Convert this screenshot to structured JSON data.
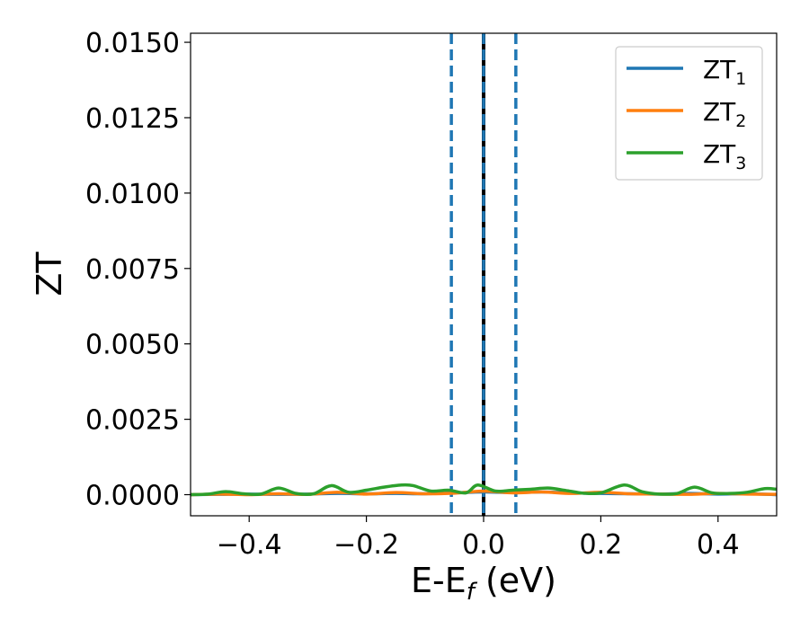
{
  "chart_data": {
    "type": "line",
    "title": "",
    "xlabel": {
      "main": "E-E",
      "sub": "f",
      "unit": " (eV)"
    },
    "ylabel": "ZT",
    "xlim": [
      -0.5,
      0.5
    ],
    "ylim": [
      -0.0007,
      0.0153
    ],
    "xticks": [
      -0.4,
      -0.2,
      0.0,
      0.2,
      0.4
    ],
    "xtick_labels": [
      "−0.4",
      "−0.2",
      "0.0",
      "0.2",
      "0.4"
    ],
    "yticks": [
      0.0,
      0.0025,
      0.005,
      0.0075,
      0.01,
      0.0125,
      0.015
    ],
    "ytick_labels": [
      "0.0000",
      "0.0025",
      "0.0050",
      "0.0075",
      "0.0100",
      "0.0125",
      "0.0150"
    ],
    "grid": false,
    "legend_position": "top-right",
    "vlines": [
      {
        "x": -0.055,
        "style": "dashed",
        "color": "#1f77b4"
      },
      {
        "x": 0.055,
        "style": "dashed",
        "color": "#1f77b4"
      },
      {
        "x": 0.0,
        "style": "solid",
        "color": "#000000"
      },
      {
        "x": 0.0,
        "style": "dashed",
        "color": "#1f77b4"
      }
    ],
    "series": [
      {
        "name": "ZT",
        "sub": "1",
        "color": "#1f77b4",
        "x": [
          -0.5,
          -0.45,
          -0.4,
          -0.35,
          -0.3,
          -0.25,
          -0.2,
          -0.15,
          -0.1,
          -0.05,
          0.0,
          0.05,
          0.1,
          0.15,
          0.2,
          0.25,
          0.3,
          0.35,
          0.4,
          0.45,
          0.5
        ],
        "y": [
          0.0,
          1e-05,
          2e-05,
          1e-05,
          2e-05,
          4e-05,
          3e-05,
          4e-05,
          3e-05,
          6e-05,
          9e-05,
          7e-05,
          9e-05,
          6e-05,
          4e-05,
          3e-05,
          2e-05,
          4e-05,
          2e-05,
          3e-05,
          0.0
        ]
      },
      {
        "name": "ZT",
        "sub": "2",
        "color": "#ff7f0e",
        "x": [
          -0.5,
          -0.45,
          -0.4,
          -0.35,
          -0.3,
          -0.25,
          -0.2,
          -0.15,
          -0.1,
          -0.05,
          0.0,
          0.05,
          0.1,
          0.15,
          0.2,
          0.25,
          0.3,
          0.35,
          0.4,
          0.45,
          0.5
        ],
        "y": [
          0.0,
          2e-05,
          0.0,
          3e-05,
          1e-05,
          8e-05,
          2e-05,
          7e-05,
          3e-05,
          5e-05,
          0.00012,
          6e-05,
          9e-05,
          4e-05,
          8e-05,
          3e-05,
          2e-05,
          1e-05,
          4e-05,
          2e-05,
          1e-05
        ]
      },
      {
        "name": "ZT",
        "sub": "3",
        "color": "#2ca02c",
        "x": [
          -0.5,
          -0.47,
          -0.44,
          -0.41,
          -0.38,
          -0.35,
          -0.32,
          -0.29,
          -0.26,
          -0.23,
          -0.2,
          -0.17,
          -0.14,
          -0.12,
          -0.09,
          -0.06,
          -0.03,
          -0.01,
          0.02,
          0.05,
          0.08,
          0.11,
          0.14,
          0.17,
          0.2,
          0.24,
          0.27,
          0.3,
          0.33,
          0.36,
          0.39,
          0.42,
          0.45,
          0.48,
          0.5
        ],
        "y": [
          0.0,
          2e-05,
          0.0001,
          3e-05,
          2e-05,
          0.00022,
          4e-05,
          3e-05,
          0.0003,
          8e-05,
          0.00015,
          0.00025,
          0.00032,
          0.0003,
          0.00012,
          0.00015,
          6e-05,
          0.00032,
          0.00012,
          0.00015,
          0.00018,
          0.00022,
          0.00014,
          5e-05,
          6e-05,
          0.00032,
          0.0001,
          2e-05,
          4e-05,
          0.00025,
          6e-05,
          4e-05,
          8e-05,
          0.0002,
          0.00018
        ]
      }
    ]
  }
}
